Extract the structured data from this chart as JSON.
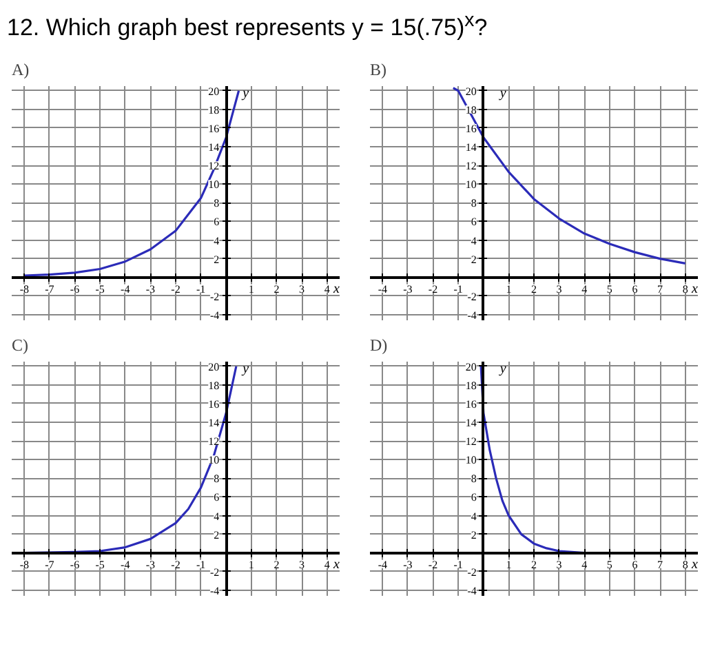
{
  "chart_data": [
    {
      "type": "line",
      "title": "12. Which graph best represents y = 15(.75)$^{x}$?",
      "subtitle": "A)",
      "xlabel": "x",
      "ylabel": "y",
      "x": [
        -8,
        -7,
        -6,
        -5,
        -4,
        -3,
        -2,
        -1,
        -0.5,
        0,
        0.3,
        0.5
      ],
      "series": [
        {
          "color": "#2b2bb8",
          "values": [
            0.2,
            0.3,
            0.5,
            0.9,
            1.7,
            3,
            5,
            8.5,
            11.5,
            15,
            18,
            20
          ]
        }
      ],
      "xlim": [
        -8.5,
        4.5
      ],
      "ylim": [
        -4.6,
        20.5
      ],
      "xticks": [
        -8,
        -7,
        -6,
        -5,
        -4,
        -3,
        -2,
        -1,
        1,
        2,
        3,
        4
      ],
      "yticks": [
        -4,
        -2,
        2,
        4,
        6,
        8,
        10,
        12,
        14,
        16,
        18,
        20
      ],
      "grid": true,
      "marker": "none",
      "line_style": "solid"
    },
    {
      "type": "line",
      "subtitle": "B)",
      "xlabel": "x",
      "ylabel": "y",
      "x": [
        -1.2,
        -1,
        0,
        1,
        2,
        3,
        4,
        5,
        6,
        7,
        8
      ],
      "series": [
        {
          "color": "#2b2bb8",
          "values": [
            20.3,
            20,
            15,
            11.3,
            8.4,
            6.3,
            4.7,
            3.6,
            2.7,
            2,
            1.5
          ]
        }
      ],
      "xlim": [
        -4.5,
        8.5
      ],
      "ylim": [
        -4.6,
        20.5
      ],
      "xticks": [
        -4,
        -3,
        -2,
        -1,
        1,
        2,
        3,
        4,
        5,
        6,
        7,
        8
      ],
      "yticks": [
        -4,
        -2,
        2,
        4,
        6,
        8,
        10,
        12,
        14,
        16,
        18,
        20
      ],
      "grid": true,
      "marker": "none",
      "line_style": "solid"
    },
    {
      "type": "line",
      "subtitle": "C)",
      "xlabel": "x",
      "ylabel": "y",
      "x": [
        -8,
        -6,
        -5,
        -4,
        -3,
        -2,
        -1.5,
        -1,
        -0.5,
        0,
        0.2,
        0.4
      ],
      "series": [
        {
          "color": "#2b2bb8",
          "values": [
            0,
            0.1,
            0.2,
            0.6,
            1.5,
            3.2,
            4.7,
            7,
            10.3,
            15,
            17.5,
            20
          ]
        }
      ],
      "xlim": [
        -8.5,
        4.5
      ],
      "ylim": [
        -4.6,
        20.5
      ],
      "xticks": [
        -8,
        -7,
        -6,
        -5,
        -4,
        -3,
        -2,
        -1,
        1,
        2,
        3,
        4
      ],
      "yticks": [
        -4,
        -2,
        2,
        4,
        6,
        8,
        10,
        12,
        14,
        16,
        18,
        20
      ],
      "grid": true,
      "marker": "none",
      "line_style": "solid"
    },
    {
      "type": "line",
      "subtitle": "D)",
      "xlabel": "x",
      "ylabel": "y",
      "x": [
        -0.1,
        0,
        0.25,
        0.5,
        0.75,
        1,
        1.5,
        2,
        2.5,
        3,
        4,
        5,
        8
      ],
      "series": [
        {
          "color": "#2b2bb8",
          "values": [
            20,
            15,
            11,
            8,
            5.6,
            4,
            2,
            1,
            0.5,
            0.2,
            0,
            0,
            0
          ]
        }
      ],
      "xlim": [
        -4.5,
        8.5
      ],
      "ylim": [
        -4.6,
        20.5
      ],
      "xticks": [
        -4,
        -3,
        -2,
        -1,
        1,
        2,
        3,
        4,
        5,
        6,
        7,
        8
      ],
      "yticks": [
        -4,
        -2,
        2,
        4,
        6,
        8,
        10,
        12,
        14,
        16,
        18,
        20
      ],
      "grid": true,
      "marker": "none",
      "line_style": "solid"
    }
  ]
}
